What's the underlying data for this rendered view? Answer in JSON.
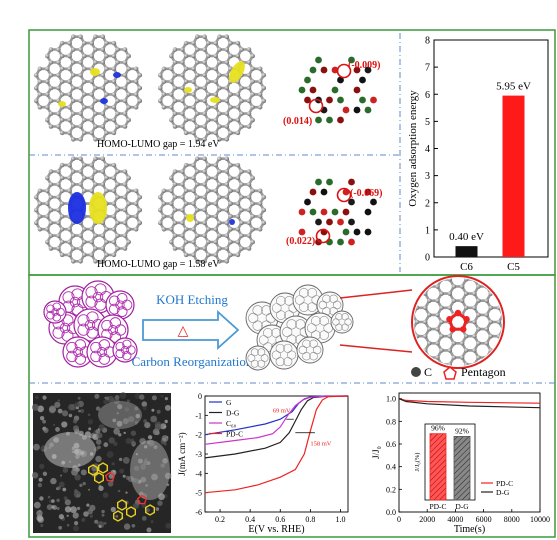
{
  "panel_a": {
    "gap_top": "HOMO-LUMO gap = 1.94 eV",
    "gap_bottom": "HOMO-LUMO gap = 1.58 eV",
    "charge_top_1": "(-0.009)",
    "charge_top_2": "(0.014)",
    "charge_bottom_1": "(-0.069)",
    "charge_bottom_2": "(0.022)"
  },
  "panel_b": {
    "process_label_top": "KOH Etching",
    "process_label_bottom": "Carbon Reorganization",
    "delta_symbol": "△",
    "legend_carbon": "C",
    "legend_pentagon": "Pentagon"
  },
  "chart_data": [
    {
      "type": "bar",
      "ylabel": "Oxygen adsorption energy",
      "categories": [
        "C6",
        "C5"
      ],
      "values": [
        0.4,
        5.95
      ],
      "data_labels": [
        "0.40 eV",
        "5.95 eV"
      ],
      "colors": [
        "#111111",
        "#ff1a1a"
      ],
      "ylim": [
        0,
        8
      ],
      "yticks": [
        "0",
        "1",
        "2",
        "3",
        "4",
        "5",
        "6",
        "7",
        "8"
      ]
    },
    {
      "type": "line",
      "xlabel": "E(V vs. RHE)",
      "ylabel": "J(mA cm⁻²)",
      "xlim": [
        0.1,
        1.05
      ],
      "ylim": [
        -6,
        0
      ],
      "xticks": [
        "0.2",
        "0.4",
        "0.6",
        "0.8",
        "1.0"
      ],
      "yticks": [
        "0",
        "-1",
        "-2",
        "-3",
        "-4",
        "-5",
        "-6"
      ],
      "annotations": [
        "69 mV",
        "158 mV"
      ],
      "series": [
        {
          "name": "G",
          "color": "#2233cc",
          "x": [
            0.1,
            0.3,
            0.5,
            0.6,
            0.68,
            0.72,
            0.76,
            0.8,
            0.85,
            0.9,
            1.05
          ],
          "y": [
            -2.0,
            -1.75,
            -1.45,
            -1.2,
            -0.8,
            -0.4,
            -0.15,
            -0.05,
            -0.02,
            0,
            0
          ]
        },
        {
          "name": "D-G",
          "color": "#222222",
          "x": [
            0.1,
            0.3,
            0.5,
            0.6,
            0.66,
            0.7,
            0.74,
            0.78,
            0.82,
            0.9,
            1.05
          ],
          "y": [
            -3.2,
            -3.0,
            -2.7,
            -2.4,
            -1.9,
            -1.3,
            -0.7,
            -0.25,
            -0.08,
            -0.02,
            0
          ]
        },
        {
          "name": "C₆₀",
          "color": "#cc33cc",
          "x": [
            0.1,
            0.3,
            0.45,
            0.55,
            0.6,
            0.65,
            0.7,
            0.75,
            0.8,
            0.9,
            1.05
          ],
          "y": [
            -2.5,
            -2.3,
            -2.15,
            -1.95,
            -1.6,
            -1.0,
            -0.5,
            -0.2,
            -0.06,
            -0.01,
            0
          ]
        },
        {
          "name": "PD-C",
          "color": "#ee2222",
          "x": [
            0.1,
            0.3,
            0.45,
            0.6,
            0.7,
            0.76,
            0.8,
            0.84,
            0.88,
            0.92,
            1.05
          ],
          "y": [
            -5.0,
            -4.85,
            -4.6,
            -4.2,
            -3.8,
            -3.0,
            -1.8,
            -0.7,
            -0.2,
            -0.03,
            0
          ]
        }
      ]
    },
    {
      "type": "line",
      "xlabel": "Time(s)",
      "ylabel": "J/J₀",
      "xlim": [
        0,
        10000
      ],
      "ylim": [
        0,
        1.05
      ],
      "xticks": [
        "0",
        "2000",
        "4000",
        "6000",
        "8000",
        "10000"
      ],
      "yticks": [
        "0.0",
        "0.2",
        "0.4",
        "0.6",
        "0.8",
        "1.0"
      ],
      "series": [
        {
          "name": "PD-C",
          "color": "#ee2222",
          "x": [
            0,
            500,
            2000,
            5000,
            10000
          ],
          "y": [
            1.0,
            0.985,
            0.975,
            0.968,
            0.96
          ]
        },
        {
          "name": "D-G",
          "color": "#222222",
          "x": [
            0,
            500,
            2000,
            5000,
            10000
          ],
          "y": [
            1.0,
            0.975,
            0.955,
            0.935,
            0.92
          ]
        }
      ],
      "inset": {
        "type": "bar",
        "ylabel": "J/J₀(%)",
        "categories": [
          "PD-C",
          "D-G"
        ],
        "values": [
          96,
          92
        ],
        "data_labels": [
          "96%",
          "92%"
        ],
        "colors": [
          "#ee2222",
          "#555555"
        ]
      }
    }
  ]
}
